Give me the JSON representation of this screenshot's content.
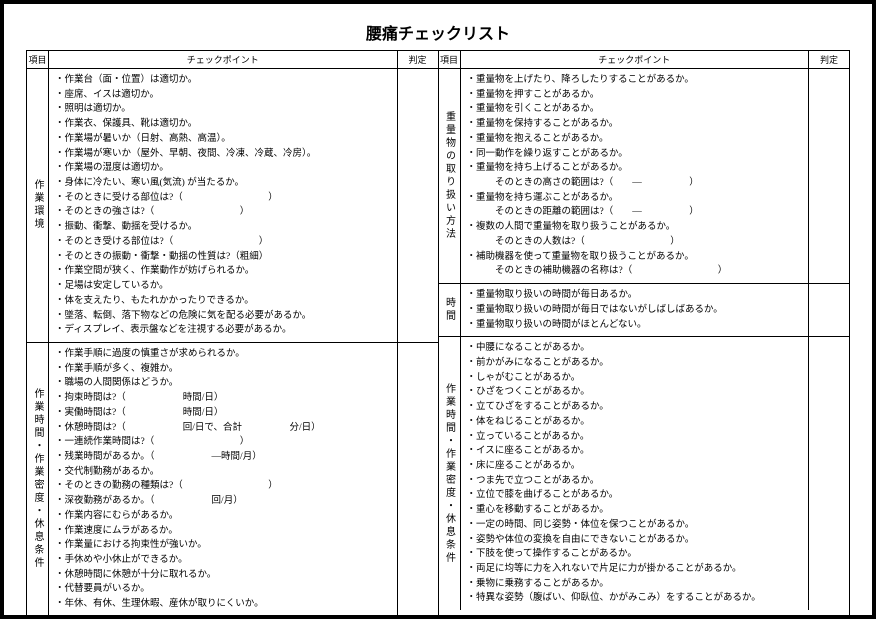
{
  "title": "腰痛チェックリスト",
  "headers": {
    "category": "項目",
    "checkpoint": "チェックポイント",
    "judgement": "判定"
  },
  "left": [
    {
      "category": "作業環境",
      "items": [
        "・作業台（面・位置）は適切か。",
        "・座席、イスは適切か。",
        "・照明は適切か。",
        "・作業衣、保護具、靴は適切か。",
        "・作業場が暑いか（日射、高熱、高温）。",
        "・作業場が寒いか（屋外、早朝、夜間、冷凍、冷蔵、冷房）。",
        "・作業場の湿度は適切か。",
        "・身体に冷たい、寒い風(気流) が当たるか。",
        "・そのときに受ける部位は?（　　　　　　　　　）",
        "・そのときの強さは?（　　　　　　　　　）",
        "・振動、衝撃、動揺を受けるか。",
        "・そのとき受ける部位は?（　　　　　　　　　）",
        "・そのときの振動・衝撃・動揺の性質は?（粗細）",
        "・作業空間が狭く、作業動作が妨げられるか。",
        "・足場は安定しているか。",
        "・体を支えたり、もたれかかったりできるか。",
        "・墜落、転倒、落下物などの危険に気を配る必要があるか。",
        "・ディスプレイ、表示盤などを注視する必要があるか。"
      ]
    },
    {
      "category": "作業時間・作業密度・休息条件",
      "items": [
        "・作業手順に過度の慎重さが求められるか。",
        "・作業手順が多く、複雑か。",
        "・職場の人間関係はどうか。",
        "・拘束時間は?（　　　　　　時間/日）",
        "・実働時間は?（　　　　　　時間/日）",
        "・休憩時間は?（　　　　　　回/日で、合計　　　　　分/日）",
        "・一連続作業時間は?（　　　　　　　　　）",
        "・残業時間があるか。（　　　　　　―時間/月）",
        "・交代制勤務があるか。",
        "・そのときの勤務の種類は?（　　　　　　　　　）",
        "・深夜勤務があるか。（　　　　　　回/月）",
        "・作業内容にむらがあるか。",
        "・作業速度にムラがあるか。",
        "・作業量における拘束性が強いか。",
        "・手休めや小休止ができるか。",
        "・休憩時間に休憩が十分に取れるか。",
        "・代替要員がいるか。",
        "・年休、有休、生理休暇、産休が取りにくいか。"
      ]
    }
  ],
  "right": [
    {
      "category": "重量物の取り扱い方法",
      "items": [
        "・重量物を上げたり、降ろしたりすることがあるか。",
        "・重量物を押すことがあるか。",
        "・重量物を引くことがあるか。",
        "・重量物を保持することがあるか。",
        "・重量物を抱えることがあるか。",
        "・同一動作を繰り返すことがあるか。",
        "・重量物を持ち上げることがあるか。",
        "　　　そのときの高さの範囲は?（　　―　　　　　）",
        "・重量物を持ち運ぶことがあるか。",
        "　　　そのときの距離の範囲は?（　　―　　　　　）",
        "・複数の人間で重量物を取り扱うことがあるか。",
        "　　　そのときの人数は?（　　　　　　　　　）",
        "・補助機器を使って重量物を取り扱うことがあるか。",
        "　　　そのときの補助機器の名称は?（　　　　　　　　　）"
      ]
    },
    {
      "category": "時間",
      "items": [
        "・重量物取り扱いの時間が毎日あるか。",
        "・重量物取り扱いの時間が毎日ではないがしばしばあるか。",
        "・重量物取り扱いの時間がほとんどない。"
      ]
    },
    {
      "category": "作業時間・作業密度・休息条件",
      "items": [
        "・中腰になることがあるか。",
        "・前かがみになることがあるか。",
        "・しゃがむことがあるか。",
        "・ひざをつくことがあるか。",
        "・立てひざをすることがあるか。",
        "・体をねじることがあるか。",
        "・立っていることがあるか。",
        "・イスに座ることがあるか。",
        "・床に座ることがあるか。",
        "・つま先で立つことがあるか。",
        "・立位で膝を曲げることがあるか。",
        "・重心を移動することがあるか。",
        "・一定の時間、同じ姿勢・体位を保つことがあるか。",
        "・姿勢や体位の変換を自由にできないことがあるか。",
        "・下肢を使って操作することがあるか。",
        "・両足に均等に力を入れないで片足に力が掛かることがあるか。",
        "・乗物に乗務することがあるか。",
        "・特異な姿勢（腹ばい、仰臥位、かがみこみ）をすることがあるか。"
      ]
    }
  ]
}
